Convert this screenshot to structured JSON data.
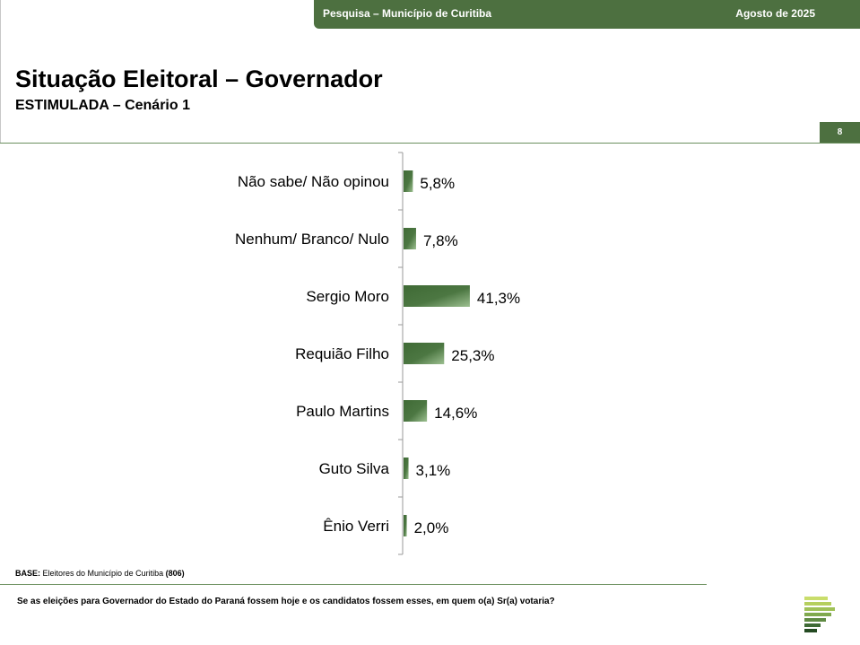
{
  "header": {
    "survey": "Pesquisa – Município de Curitiba",
    "date": "Agosto de 2025",
    "page_number": "8"
  },
  "title": "Situação Eleitoral – Governador",
  "subtitle": "ESTIMULADA – Cenário 1",
  "base": {
    "label": "BASE:",
    "text": " Eleitores do Município de Curitiba ",
    "count": "(806)"
  },
  "question": "Se as eleições para Governador do Estado do Paraná fossem hoje e os candidatos fossem esses, em quem o(a) Sr(a) votaria?",
  "colors": {
    "brand_green": "#4d7040",
    "bar_dark": "#3f6a35",
    "bar_light": "#8fb283"
  },
  "chart_data": {
    "type": "bar",
    "orientation": "horizontal",
    "categories": [
      "Não sabe/ Não opinou",
      "Nenhum/ Branco/ Nulo",
      "Sergio Moro",
      "Requião Filho",
      "Paulo Martins",
      "Guto Silva",
      "Ênio Verri"
    ],
    "values": [
      5.8,
      7.8,
      41.3,
      25.3,
      14.6,
      3.1,
      2.0
    ],
    "value_labels": [
      "5,8%",
      "7,8%",
      "41,3%",
      "25,3%",
      "14,6%",
      "3,1%",
      "2,0%"
    ],
    "unit": "%",
    "grid": false,
    "legend": "none"
  }
}
